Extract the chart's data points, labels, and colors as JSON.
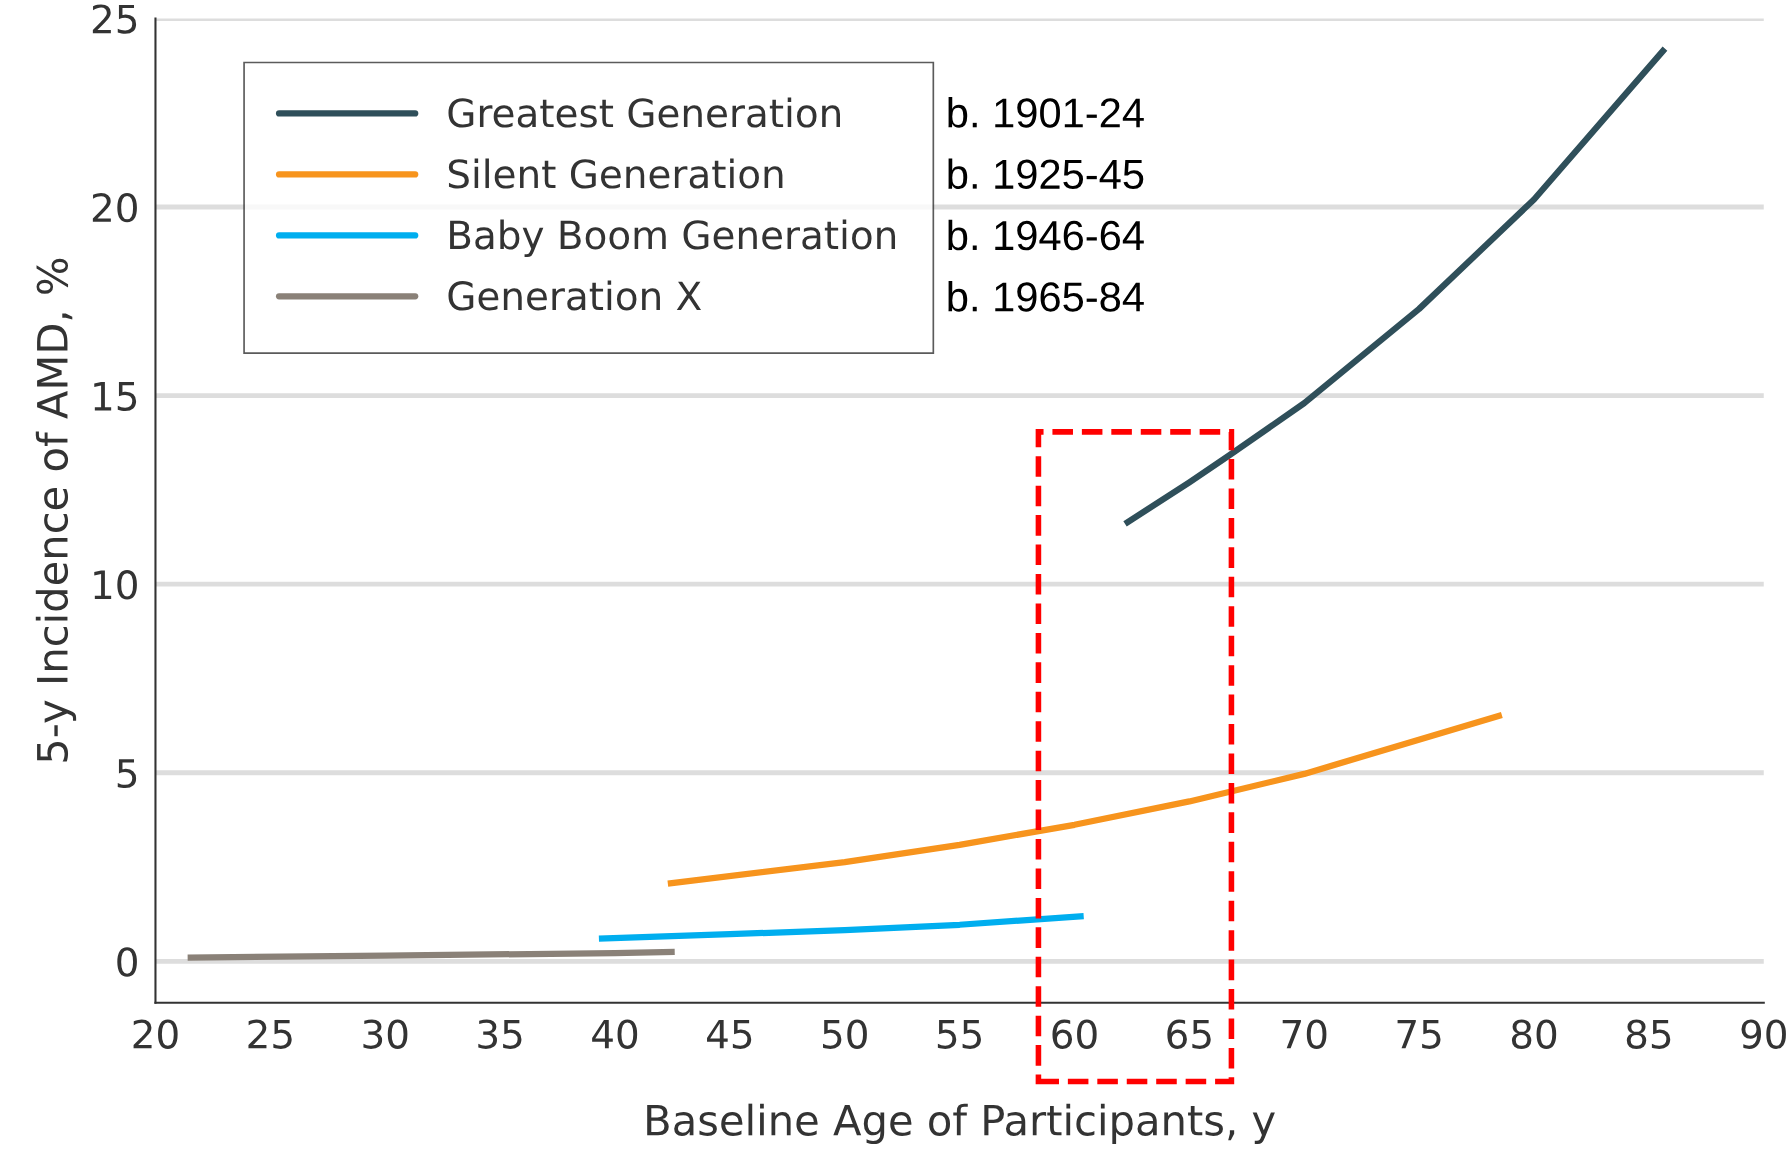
{
  "chart_data": {
    "type": "line",
    "xlabel": "Baseline Age of Participants, y",
    "ylabel": "5-y Incidence of AMD, %",
    "xlim": [
      20,
      90
    ],
    "xticks": [
      20,
      25,
      30,
      35,
      40,
      45,
      50,
      55,
      60,
      65,
      70,
      75,
      80,
      85,
      90
    ],
    "ylim": [
      -1.1,
      25
    ],
    "yticks": [
      0,
      5,
      10,
      15,
      20,
      25
    ],
    "grid": "y",
    "legend": "top left",
    "line_style": "solid",
    "marker": "none",
    "series": [
      {
        "name": "Greatest Generation",
        "color": "#2f4f5a",
        "x": [
          62.2,
          65,
          66.7,
          70,
          75,
          80,
          85.7
        ],
        "values": [
          11.6,
          12.7,
          13.4,
          14.8,
          17.3,
          20.2,
          24.2
        ]
      },
      {
        "name": "Silent Generation",
        "color": "#f7941d",
        "x": [
          42.3,
          50,
          55,
          60,
          65,
          70,
          78.6
        ],
        "values": [
          2.06,
          2.63,
          3.09,
          3.62,
          4.24,
          4.97,
          6.53
        ]
      },
      {
        "name": "Baby Boom Generation",
        "color": "#00aeef",
        "x": [
          39.3,
          45,
          50,
          55,
          60.4
        ],
        "values": [
          0.6,
          0.72,
          0.83,
          0.97,
          1.2
        ]
      },
      {
        "name": "Generation X",
        "color": "#8a8178",
        "x": [
          21.4,
          30,
          40,
          42.6
        ],
        "values": [
          0.1,
          0.15,
          0.22,
          0.25
        ]
      }
    ],
    "annotations": [
      "b. 1901-24",
      "b. 1925-45",
      "b. 1946-64",
      "b. 1965-84"
    ]
  }
}
